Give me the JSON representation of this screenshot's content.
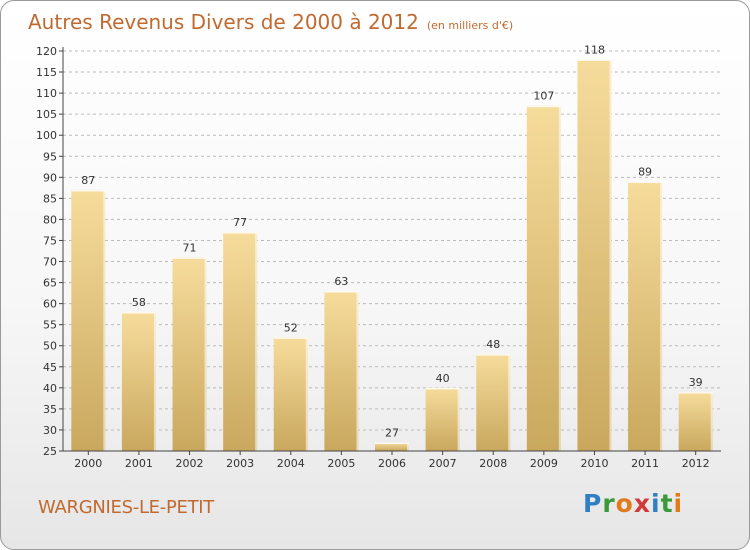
{
  "title": "Autres Revenus Divers de 2000 à 2012",
  "unit_note": "(en milliers d'€)",
  "footer": {
    "commune": "WARGNIES-LE-PETIT"
  },
  "logo": {
    "text": "Proxiti",
    "letter_colors": [
      "#2f7fc2",
      "#3a9a3a",
      "#e07a1a",
      "#d23a3a",
      "#2f7fc2",
      "#3a9a3a",
      "#e07a1a"
    ]
  },
  "colors": {
    "title": "#c06a30",
    "bar_light": "#f6dc9c",
    "bar_dark": "#c9a85e",
    "grid": "#bbbbbb"
  },
  "chart_data": {
    "type": "bar",
    "categories": [
      "2000",
      "2001",
      "2002",
      "2003",
      "2004",
      "2005",
      "2006",
      "2007",
      "2008",
      "2009",
      "2010",
      "2011",
      "2012"
    ],
    "values": [
      87,
      58,
      71,
      77,
      52,
      63,
      27,
      40,
      48,
      107,
      118,
      89,
      39
    ],
    "ylim": [
      25,
      120
    ],
    "yticks": [
      25,
      30,
      35,
      40,
      45,
      50,
      55,
      60,
      65,
      70,
      75,
      80,
      85,
      90,
      95,
      100,
      105,
      110,
      115,
      120
    ],
    "grid": "horizontal dashed",
    "legend": "none"
  }
}
